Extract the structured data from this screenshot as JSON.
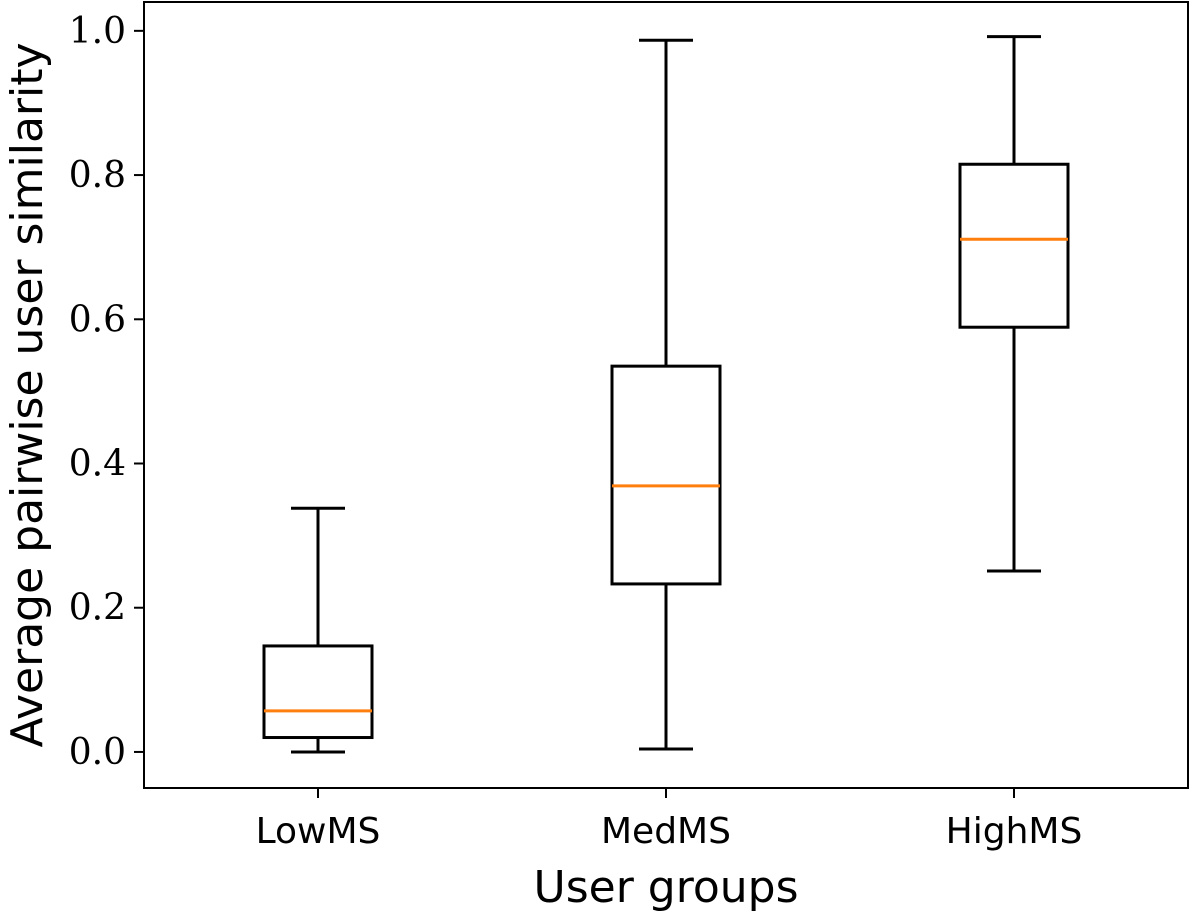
{
  "chart_data": {
    "type": "boxplot",
    "title": "",
    "xlabel": "User groups",
    "ylabel": "Average pairwise user similarity",
    "ylim": [
      -0.05,
      1.04
    ],
    "yticks": [
      0.0,
      0.2,
      0.4,
      0.6,
      0.8,
      1.0
    ],
    "ytick_labels": [
      "0.0",
      "0.2",
      "0.4",
      "0.6",
      "0.8",
      "1.0"
    ],
    "categories": [
      "LowMS",
      "MedMS",
      "HighMS"
    ],
    "boxes": [
      {
        "name": "LowMS",
        "whisker_low": 0.0,
        "q1": 0.02,
        "median": 0.057,
        "q3": 0.147,
        "whisker_high": 0.338
      },
      {
        "name": "MedMS",
        "whisker_low": 0.004,
        "q1": 0.233,
        "median": 0.369,
        "q3": 0.535,
        "whisker_high": 0.987
      },
      {
        "name": "HighMS",
        "whisker_low": 0.251,
        "q1": 0.589,
        "median": 0.711,
        "q3": 0.815,
        "whisker_high": 0.992
      }
    ],
    "colors": {
      "box": "#000000",
      "median": "#ff7f0e"
    },
    "grid": false,
    "legend": false
  }
}
